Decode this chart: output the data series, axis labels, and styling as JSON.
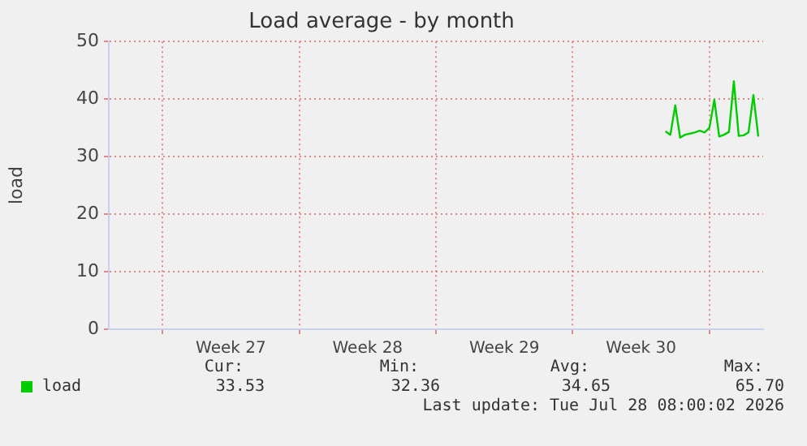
{
  "chart_data": {
    "type": "line",
    "title": "Load average - by month",
    "ylabel": "load",
    "categories": [
      null,
      null,
      null,
      null,
      null,
      null,
      null,
      null,
      null,
      null,
      null,
      null,
      null,
      null,
      null,
      null,
      null,
      null,
      null,
      null,
      null,
      null,
      null,
      null,
      null,
      "Week 27",
      null,
      null,
      null,
      null,
      null,
      null,
      null,
      null,
      null,
      null,
      null,
      null,
      null,
      null,
      null,
      null,
      null,
      null,
      null,
      null,
      null,
      null,
      null,
      null,
      null,
      null,
      null,
      "Week 28",
      null,
      null,
      null,
      null,
      null,
      null,
      null,
      null,
      null,
      null,
      null,
      null,
      null,
      null,
      null,
      null,
      null,
      null,
      null,
      null,
      null,
      null,
      null,
      null,
      null,
      null,
      null,
      "Week 29",
      null,
      null,
      null,
      null,
      null,
      null,
      null,
      null,
      null,
      null,
      null,
      null,
      null,
      null,
      null,
      null,
      null,
      null,
      null,
      null,
      null,
      null,
      null,
      null,
      null,
      null,
      null,
      "Week 30",
      null,
      null,
      null,
      null,
      null,
      null,
      null,
      null,
      null,
      null,
      null,
      null,
      null,
      null,
      null,
      null,
      null,
      null,
      null,
      null,
      null,
      null,
      null,
      null,
      null
    ],
    "series": [
      {
        "name": "load",
        "color": "#00cc00",
        "values": [
          null,
          null,
          null,
          null,
          null,
          null,
          null,
          null,
          null,
          null,
          null,
          null,
          null,
          null,
          null,
          null,
          null,
          null,
          null,
          null,
          null,
          null,
          null,
          null,
          null,
          null,
          null,
          null,
          null,
          null,
          null,
          null,
          null,
          null,
          null,
          null,
          null,
          null,
          null,
          null,
          null,
          null,
          null,
          null,
          null,
          null,
          null,
          null,
          null,
          null,
          null,
          null,
          null,
          null,
          null,
          null,
          null,
          null,
          null,
          null,
          null,
          null,
          null,
          null,
          null,
          null,
          null,
          null,
          null,
          null,
          null,
          null,
          null,
          null,
          null,
          null,
          null,
          null,
          null,
          null,
          null,
          null,
          null,
          null,
          null,
          null,
          null,
          null,
          null,
          null,
          null,
          null,
          null,
          null,
          null,
          null,
          null,
          null,
          null,
          null,
          null,
          null,
          null,
          null,
          null,
          null,
          null,
          null,
          null,
          null,
          null,
          null,
          null,
          null,
          34.4,
          33.8,
          38.9,
          33.3,
          33.8,
          34.0,
          34.2,
          34.5,
          34.2,
          35.0,
          39.9,
          33.5,
          33.8,
          34.3,
          43.1,
          33.6,
          33.7,
          34.2,
          40.7,
          33.5,
          null
        ]
      }
    ],
    "ylim": [
      0,
      50
    ],
    "yticks": [
      0,
      10,
      20,
      30,
      40,
      50
    ],
    "grid": true,
    "legend": "bottom",
    "marker": "none",
    "line_style": "solid",
    "annotations": [
      "Cur:",
      "Min:",
      "Avg:",
      "Max:",
      "33.53",
      "32.36",
      "34.65",
      "65.70",
      "Last update: Tue Jul 28 08:00:02 2026"
    ]
  }
}
